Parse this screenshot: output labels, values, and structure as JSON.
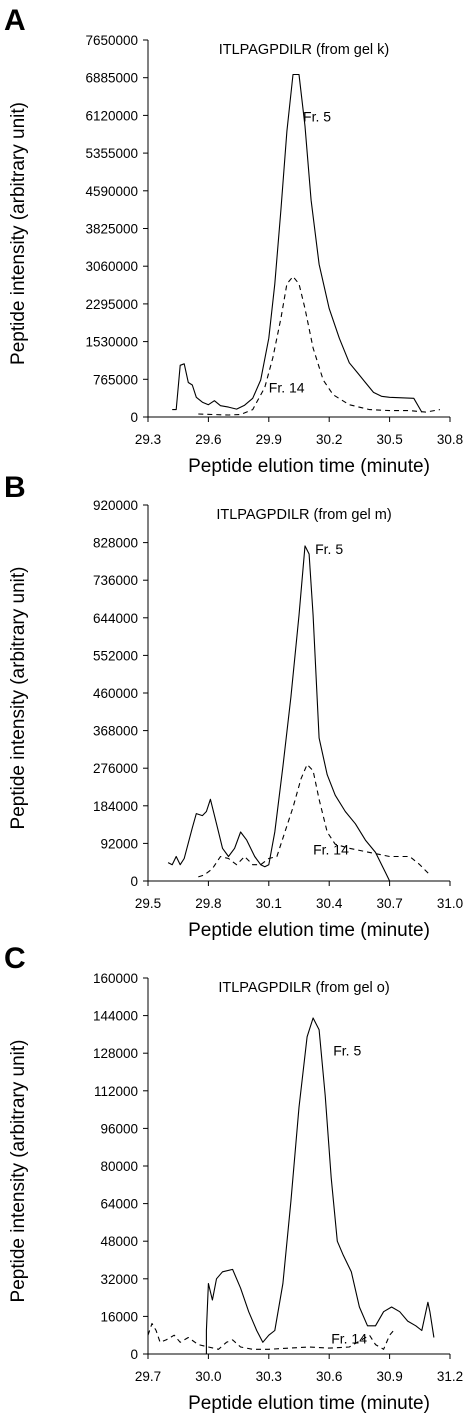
{
  "chart_data": [
    {
      "type": "line",
      "panel": "A",
      "title": "ITLPAGPDILR (from gel k)",
      "xlabel": "Peptide elution time (minute)",
      "ylabel": "Peptide intensity (arbitrary unit)",
      "xlim": [
        29.3,
        30.8
      ],
      "ylim": [
        0,
        7650000
      ],
      "x_ticks": [
        "29.3",
        "29.6",
        "29.9",
        "30.2",
        "30.5",
        "30.8"
      ],
      "y_ticks": [
        "0",
        "765000",
        "1530000",
        "2295000",
        "3060000",
        "3825000",
        "4590000",
        "5355000",
        "6120000",
        "6885000",
        "7650000"
      ],
      "grid": false,
      "series": [
        {
          "name": "Fr. 5",
          "style": "solid",
          "points": [
            [
              29.42,
              150000
            ],
            [
              29.44,
              150000
            ],
            [
              29.46,
              1050000
            ],
            [
              29.48,
              1080000
            ],
            [
              29.5,
              700000
            ],
            [
              29.52,
              650000
            ],
            [
              29.54,
              400000
            ],
            [
              29.57,
              300000
            ],
            [
              29.6,
              250000
            ],
            [
              29.63,
              330000
            ],
            [
              29.66,
              230000
            ],
            [
              29.7,
              200000
            ],
            [
              29.74,
              160000
            ],
            [
              29.78,
              240000
            ],
            [
              29.82,
              380000
            ],
            [
              29.86,
              750000
            ],
            [
              29.9,
              1600000
            ],
            [
              29.93,
              2700000
            ],
            [
              29.96,
              4200000
            ],
            [
              29.99,
              5800000
            ],
            [
              30.02,
              6950000
            ],
            [
              30.05,
              6950000
            ],
            [
              30.08,
              5900000
            ],
            [
              30.11,
              4400000
            ],
            [
              30.15,
              3100000
            ],
            [
              30.2,
              2200000
            ],
            [
              30.25,
              1600000
            ],
            [
              30.3,
              1100000
            ],
            [
              30.34,
              900000
            ],
            [
              30.38,
              700000
            ],
            [
              30.42,
              500000
            ],
            [
              30.46,
              420000
            ],
            [
              30.5,
              400000
            ],
            [
              30.56,
              390000
            ],
            [
              30.62,
              380000
            ],
            [
              30.66,
              100000
            ]
          ]
        },
        {
          "name": "Fr. 14",
          "style": "dashed",
          "points": [
            [
              29.55,
              60000
            ],
            [
              29.62,
              50000
            ],
            [
              29.7,
              40000
            ],
            [
              29.76,
              50000
            ],
            [
              29.82,
              150000
            ],
            [
              29.88,
              600000
            ],
            [
              29.92,
              1200000
            ],
            [
              29.96,
              2000000
            ],
            [
              29.99,
              2700000
            ],
            [
              30.02,
              2850000
            ],
            [
              30.05,
              2700000
            ],
            [
              30.08,
              2200000
            ],
            [
              30.12,
              1400000
            ],
            [
              30.17,
              750000
            ],
            [
              30.22,
              450000
            ],
            [
              30.3,
              250000
            ],
            [
              30.4,
              150000
            ],
            [
              30.5,
              130000
            ],
            [
              30.6,
              130000
            ],
            [
              30.68,
              100000
            ],
            [
              30.75,
              150000
            ]
          ]
        }
      ],
      "annotations": [
        {
          "text": "Fr. 5",
          "x": 30.07,
          "y": 6000000
        },
        {
          "text": "Fr. 14",
          "x": 29.9,
          "y": 500000
        }
      ]
    },
    {
      "type": "line",
      "panel": "B",
      "title": "ITLPAGPDILR (from gel m)",
      "xlabel": "Peptide elution time (minute)",
      "ylabel": "Peptide intensity (arbitrary unit)",
      "xlim": [
        29.5,
        31.0
      ],
      "ylim": [
        0,
        920000
      ],
      "x_ticks": [
        "29.5",
        "29.8",
        "30.1",
        "30.4",
        "30.7",
        "31.0"
      ],
      "y_ticks": [
        "0",
        "92000",
        "184000",
        "276000",
        "368000",
        "460000",
        "552000",
        "644000",
        "736000",
        "828000",
        "920000"
      ],
      "grid": false,
      "series": [
        {
          "name": "Fr. 5",
          "style": "solid",
          "points": [
            [
              29.6,
              45000
            ],
            [
              29.62,
              40000
            ],
            [
              29.64,
              60000
            ],
            [
              29.66,
              40000
            ],
            [
              29.68,
              55000
            ],
            [
              29.72,
              130000
            ],
            [
              29.74,
              165000
            ],
            [
              29.77,
              160000
            ],
            [
              29.79,
              170000
            ],
            [
              29.81,
              200000
            ],
            [
              29.84,
              140000
            ],
            [
              29.87,
              80000
            ],
            [
              29.9,
              60000
            ],
            [
              29.93,
              80000
            ],
            [
              29.96,
              120000
            ],
            [
              29.99,
              100000
            ],
            [
              30.03,
              60000
            ],
            [
              30.06,
              40000
            ],
            [
              30.08,
              35000
            ],
            [
              30.1,
              40000
            ],
            [
              30.13,
              120000
            ],
            [
              30.17,
              280000
            ],
            [
              30.21,
              450000
            ],
            [
              30.25,
              650000
            ],
            [
              30.28,
              820000
            ],
            [
              30.3,
              800000
            ],
            [
              30.32,
              650000
            ],
            [
              30.35,
              350000
            ],
            [
              30.39,
              260000
            ],
            [
              30.43,
              210000
            ],
            [
              30.48,
              170000
            ],
            [
              30.53,
              140000
            ],
            [
              30.58,
              100000
            ],
            [
              30.63,
              70000
            ],
            [
              30.68,
              20000
            ],
            [
              30.7,
              0
            ]
          ]
        },
        {
          "name": "Fr. 14",
          "style": "dashed",
          "points": [
            [
              29.75,
              10000
            ],
            [
              29.78,
              15000
            ],
            [
              29.82,
              30000
            ],
            [
              29.86,
              60000
            ],
            [
              29.9,
              55000
            ],
            [
              29.94,
              40000
            ],
            [
              29.98,
              60000
            ],
            [
              30.02,
              40000
            ],
            [
              30.06,
              40000
            ],
            [
              30.1,
              55000
            ],
            [
              30.14,
              60000
            ],
            [
              30.18,
              120000
            ],
            [
              30.22,
              180000
            ],
            [
              30.26,
              250000
            ],
            [
              30.29,
              285000
            ],
            [
              30.32,
              270000
            ],
            [
              30.35,
              200000
            ],
            [
              30.39,
              120000
            ],
            [
              30.43,
              90000
            ],
            [
              30.5,
              80000
            ],
            [
              30.6,
              70000
            ],
            [
              30.7,
              60000
            ],
            [
              30.8,
              60000
            ],
            [
              30.85,
              40000
            ],
            [
              30.9,
              15000
            ]
          ]
        }
      ],
      "annotations": [
        {
          "text": "Fr. 5",
          "x": 30.33,
          "y": 800000
        },
        {
          "text": "Fr. 14",
          "x": 30.32,
          "y": 65000
        }
      ]
    },
    {
      "type": "line",
      "panel": "C",
      "title": "ITLPAGPDILR (from gel o)",
      "xlabel": "Peptide elution time (minute)",
      "ylabel": "Peptide intensity (arbitrary unit)",
      "xlim": [
        29.7,
        31.2
      ],
      "ylim": [
        0,
        160000
      ],
      "x_ticks": [
        "29.7",
        "30.0",
        "30.3",
        "30.6",
        "30.9",
        "31.2"
      ],
      "y_ticks": [
        "0",
        "16000",
        "32000",
        "48000",
        "64000",
        "80000",
        "96000",
        "112000",
        "128000",
        "144000",
        "160000"
      ],
      "grid": false,
      "series": [
        {
          "name": "Fr. 5",
          "style": "solid",
          "points": [
            [
              29.99,
              0
            ],
            [
              29.99,
              10000
            ],
            [
              30.0,
              30000
            ],
            [
              30.02,
              23000
            ],
            [
              30.04,
              32000
            ],
            [
              30.07,
              35000
            ],
            [
              30.12,
              36000
            ],
            [
              30.16,
              28000
            ],
            [
              30.2,
              18000
            ],
            [
              30.24,
              10000
            ],
            [
              30.27,
              5000
            ],
            [
              30.3,
              8000
            ],
            [
              30.33,
              10000
            ],
            [
              30.37,
              30000
            ],
            [
              30.41,
              65000
            ],
            [
              30.45,
              105000
            ],
            [
              30.49,
              135000
            ],
            [
              30.52,
              143000
            ],
            [
              30.55,
              138000
            ],
            [
              30.58,
              110000
            ],
            [
              30.61,
              75000
            ],
            [
              30.64,
              48000
            ],
            [
              30.67,
              42000
            ],
            [
              30.71,
              35000
            ],
            [
              30.75,
              20000
            ],
            [
              30.79,
              12000
            ],
            [
              30.83,
              12000
            ],
            [
              30.87,
              18000
            ],
            [
              30.91,
              20000
            ],
            [
              30.95,
              18000
            ],
            [
              30.99,
              14000
            ],
            [
              31.03,
              12000
            ],
            [
              31.06,
              10000
            ],
            [
              31.09,
              22000
            ],
            [
              31.1,
              18000
            ],
            [
              31.12,
              7000
            ]
          ]
        },
        {
          "name": "Fr. 14",
          "style": "dashed",
          "points": [
            [
              29.7,
              8000
            ],
            [
              29.72,
              13000
            ],
            [
              29.74,
              10000
            ],
            [
              29.76,
              5000
            ],
            [
              29.79,
              6000
            ],
            [
              29.83,
              8000
            ],
            [
              29.86,
              5000
            ],
            [
              29.9,
              7000
            ],
            [
              29.95,
              4000
            ],
            [
              30.0,
              3000
            ],
            [
              30.05,
              2000
            ],
            [
              30.09,
              5000
            ],
            [
              30.12,
              6000
            ],
            [
              30.16,
              3000
            ],
            [
              30.22,
              2000
            ],
            [
              30.3,
              2000
            ],
            [
              30.4,
              2500
            ],
            [
              30.5,
              3000
            ],
            [
              30.6,
              2500
            ],
            [
              30.7,
              3000
            ],
            [
              30.76,
              6000
            ],
            [
              30.8,
              8000
            ],
            [
              30.83,
              4000
            ],
            [
              30.87,
              2000
            ],
            [
              30.9,
              8000
            ],
            [
              30.92,
              10000
            ]
          ]
        }
      ],
      "annotations": [
        {
          "text": "Fr. 5",
          "x": 30.62,
          "y": 127000
        },
        {
          "text": "Fr. 14",
          "x": 30.61,
          "y": 4500
        }
      ]
    }
  ]
}
